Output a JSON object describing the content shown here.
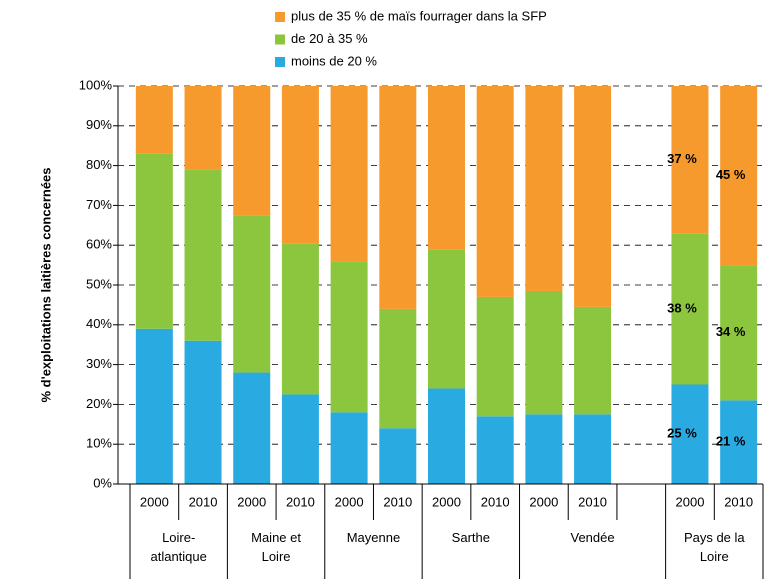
{
  "chart_data": {
    "type": "stacked_bar",
    "y_label": "% d'exploitations laitières concernées",
    "groups": [
      {
        "name": "Loire-\natlantique",
        "categories": [
          "2000",
          "2010"
        ]
      },
      {
        "name": "Maine et\nLoire",
        "categories": [
          "2000",
          "2010"
        ]
      },
      {
        "name": "Mayenne",
        "categories": [
          "2000",
          "2010"
        ]
      },
      {
        "name": "Sarthe",
        "categories": [
          "2000",
          "2010"
        ]
      },
      {
        "name": "Vendée",
        "categories": [
          "2000",
          "2010",
          null
        ]
      },
      {
        "name": "Pays de la\nLoire",
        "categories": [
          "2000",
          "2010"
        ]
      }
    ],
    "series": [
      {
        "name": "plus de 35 % de maïs fourrager dans la SFP",
        "color": "#f79a2e",
        "values": [
          17,
          21,
          32.5,
          39.5,
          44,
          56,
          41,
          53,
          51.5,
          55.5,
          null,
          37,
          45
        ],
        "value_labels": [
          null,
          null,
          null,
          null,
          null,
          null,
          null,
          null,
          null,
          null,
          null,
          "37 %",
          "45 %"
        ]
      },
      {
        "name": "de 20 à 35 %",
        "color": "#8cc63f",
        "values": [
          44,
          43,
          39.5,
          38,
          38,
          30,
          35,
          30,
          31,
          27,
          null,
          38,
          34
        ],
        "value_labels": [
          null,
          null,
          null,
          null,
          null,
          null,
          null,
          null,
          null,
          null,
          null,
          "38 %",
          "34 %"
        ]
      },
      {
        "name": "moins de 20 %",
        "color": "#29abe2",
        "values": [
          39,
          36,
          28,
          22.5,
          18,
          14,
          24,
          17,
          17.5,
          17.5,
          null,
          25,
          21
        ],
        "value_labels": [
          null,
          null,
          null,
          null,
          null,
          null,
          null,
          null,
          null,
          null,
          null,
          "25 %",
          "21 %"
        ]
      }
    ],
    "ylim": [
      0,
      100
    ],
    "yticks": [
      {
        "value": 0,
        "label": "0%"
      },
      {
        "value": 10,
        "label": "10%"
      },
      {
        "value": 20,
        "label": "20%"
      },
      {
        "value": 30,
        "label": "30%"
      },
      {
        "value": 40,
        "label": "40%"
      },
      {
        "value": 50,
        "label": "50%"
      },
      {
        "value": 60,
        "label": "60%"
      },
      {
        "value": 70,
        "label": "70%"
      },
      {
        "value": 80,
        "label": "80%"
      },
      {
        "value": 90,
        "label": "90%"
      },
      {
        "value": 100,
        "label": "100%"
      }
    ],
    "grid": true
  }
}
